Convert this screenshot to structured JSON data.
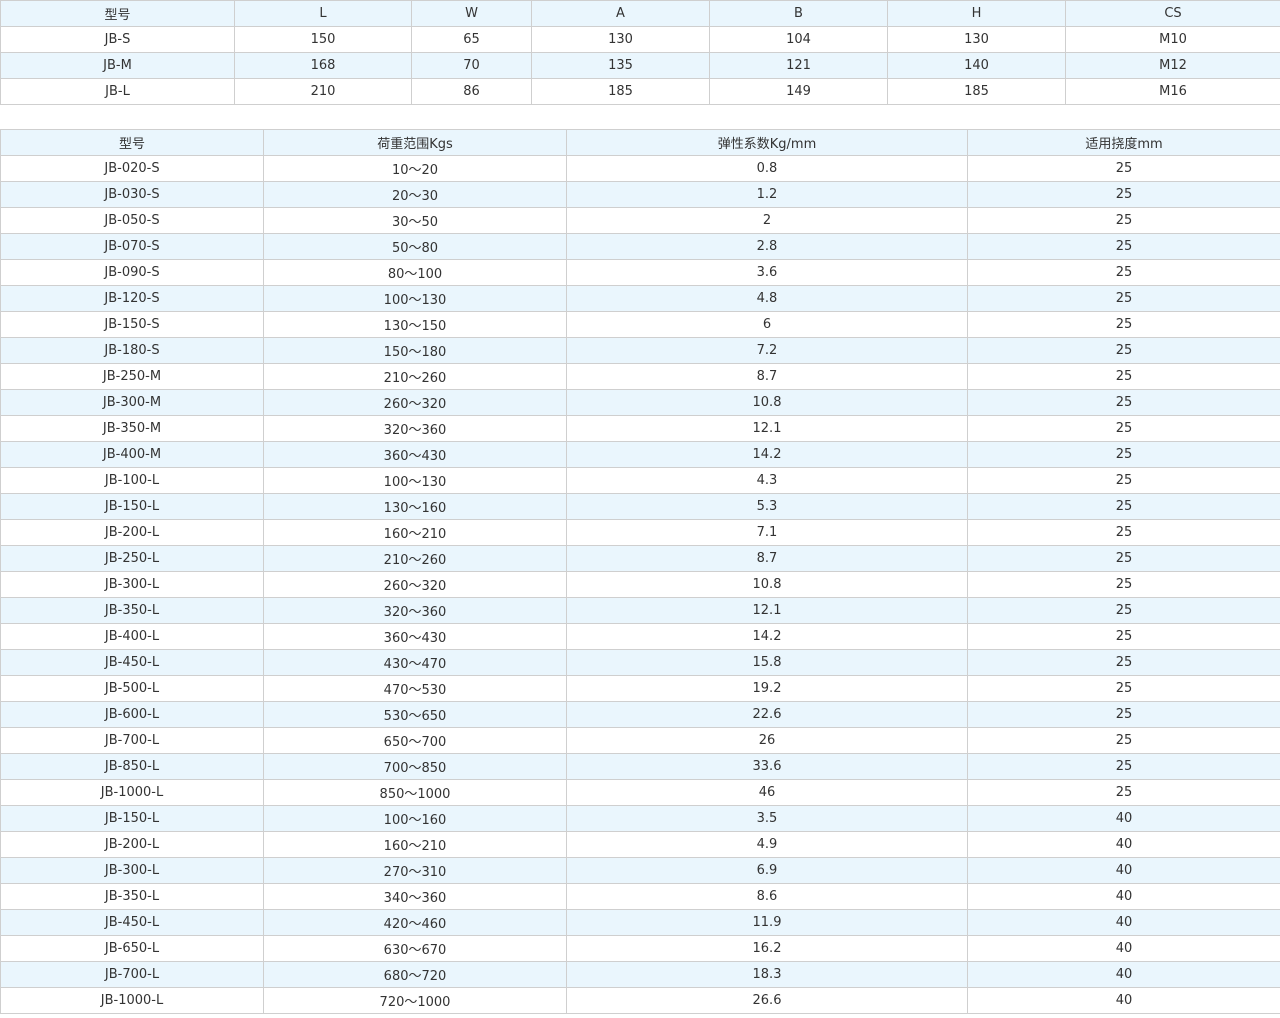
{
  "dimension_table": {
    "headers": [
      "型号",
      "L",
      "W",
      "A",
      "B",
      "H",
      "CS"
    ],
    "rows": [
      [
        "JB-S",
        "150",
        "65",
        "130",
        "104",
        "130",
        "M10"
      ],
      [
        "JB-M",
        "168",
        "70",
        "135",
        "121",
        "140",
        "M12"
      ],
      [
        "JB-L",
        "210",
        "86",
        "185",
        "149",
        "185",
        "M16"
      ]
    ]
  },
  "spec_table": {
    "headers": [
      "型号",
      "荷重范围Kgs",
      "弹性系数Kg/mm",
      "适用挠度mm"
    ],
    "rows": [
      [
        "JB-020-S",
        "10～20",
        "0.8",
        "25"
      ],
      [
        "JB-030-S",
        "20～30",
        "1.2",
        "25"
      ],
      [
        "JB-050-S",
        "30～50",
        "2",
        "25"
      ],
      [
        "JB-070-S",
        "50～80",
        "2.8",
        "25"
      ],
      [
        "JB-090-S",
        "80～100",
        "3.6",
        "25"
      ],
      [
        "JB-120-S",
        "100～130",
        "4.8",
        "25"
      ],
      [
        "JB-150-S",
        "130～150",
        "6",
        "25"
      ],
      [
        "JB-180-S",
        "150～180",
        "7.2",
        "25"
      ],
      [
        "JB-250-M",
        "210～260",
        "8.7",
        "25"
      ],
      [
        "JB-300-M",
        "260～320",
        "10.8",
        "25"
      ],
      [
        "JB-350-M",
        "320～360",
        "12.1",
        "25"
      ],
      [
        "JB-400-M",
        "360～430",
        "14.2",
        "25"
      ],
      [
        "JB-100-L",
        "100～130",
        "4.3",
        "25"
      ],
      [
        "JB-150-L",
        "130～160",
        "5.3",
        "25"
      ],
      [
        "JB-200-L",
        "160～210",
        "7.1",
        "25"
      ],
      [
        "JB-250-L",
        "210～260",
        "8.7",
        "25"
      ],
      [
        "JB-300-L",
        "260～320",
        "10.8",
        "25"
      ],
      [
        "JB-350-L",
        "320～360",
        "12.1",
        "25"
      ],
      [
        "JB-400-L",
        "360～430",
        "14.2",
        "25"
      ],
      [
        "JB-450-L",
        "430～470",
        "15.8",
        "25"
      ],
      [
        "JB-500-L",
        "470～530",
        "19.2",
        "25"
      ],
      [
        "JB-600-L",
        "530～650",
        "22.6",
        "25"
      ],
      [
        "JB-700-L",
        "650～700",
        "26",
        "25"
      ],
      [
        "JB-850-L",
        "700～850",
        "33.6",
        "25"
      ],
      [
        "JB-1000-L",
        "850～1000",
        "46",
        "25"
      ],
      [
        "JB-150-L",
        "100～160",
        "3.5",
        "40"
      ],
      [
        "JB-200-L",
        "160～210",
        "4.9",
        "40"
      ],
      [
        "JB-300-L",
        "270～310",
        "6.9",
        "40"
      ],
      [
        "JB-350-L",
        "340～360",
        "8.6",
        "40"
      ],
      [
        "JB-450-L",
        "420～460",
        "11.9",
        "40"
      ],
      [
        "JB-650-L",
        "630～670",
        "16.2",
        "40"
      ],
      [
        "JB-700-L",
        "680～720",
        "18.3",
        "40"
      ],
      [
        "JB-1000-L",
        "720～1000",
        "26.6",
        "40"
      ]
    ]
  },
  "colors": {
    "header_bg": "#eaf6fd",
    "border": "#cfcfcf",
    "text": "#333333"
  }
}
